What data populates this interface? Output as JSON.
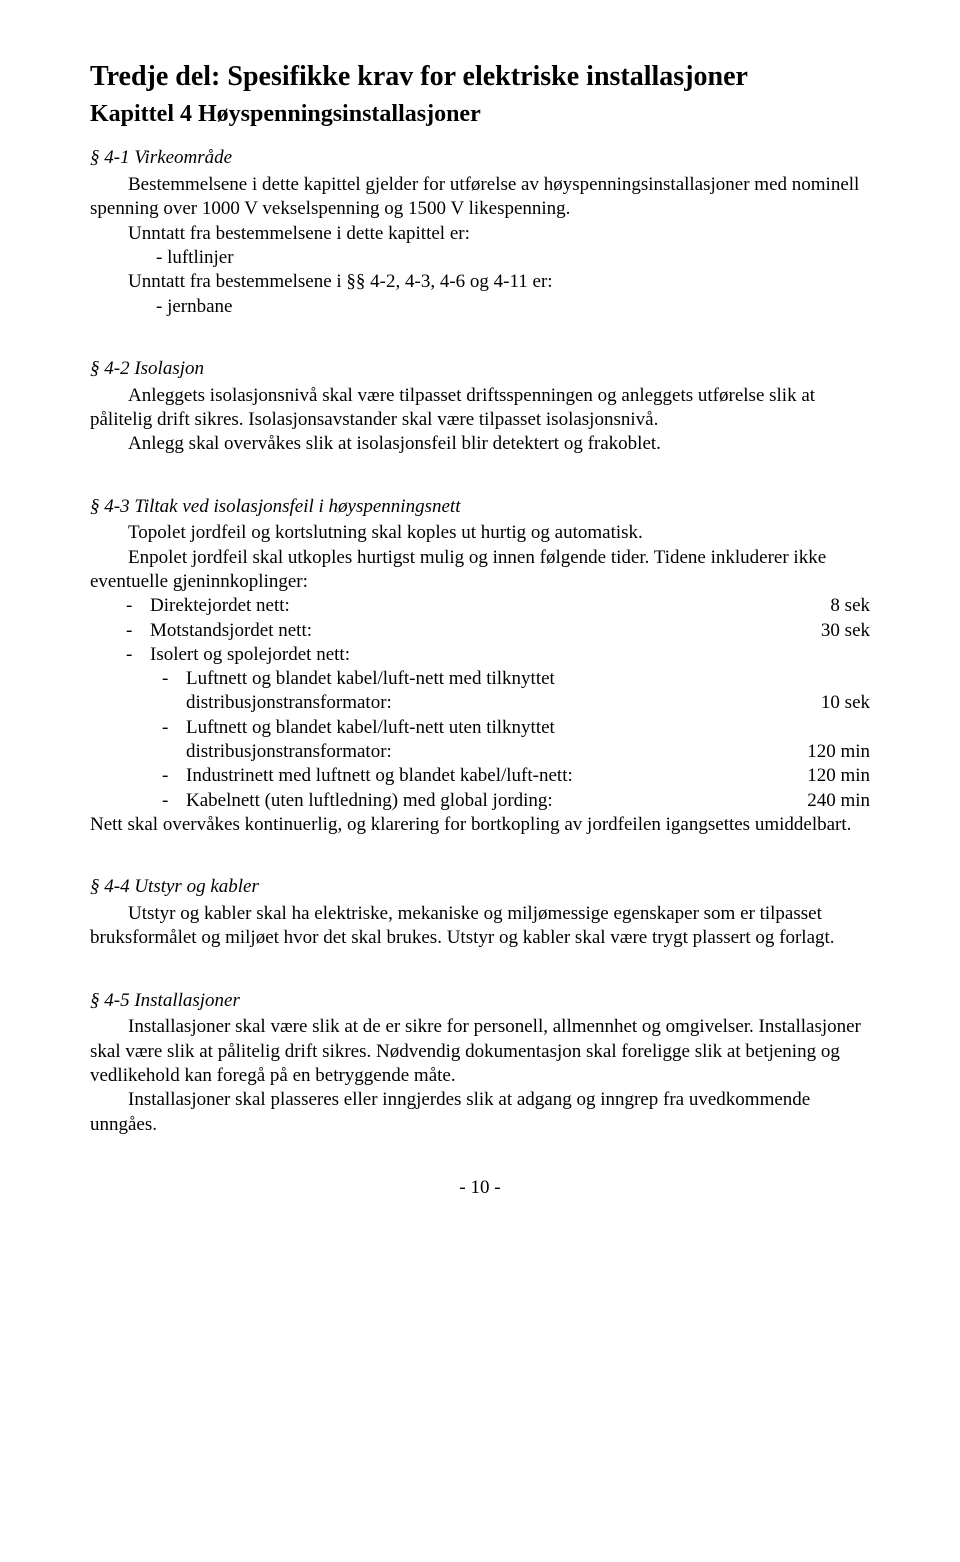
{
  "part_title": "Tredje del: Spesifikke krav for elektriske installasjoner",
  "chapter_title": "Kapittel 4 Høyspenningsinstallasjoner",
  "s41": {
    "heading": "§ 4-1  Virkeområde",
    "p1": "Bestemmelsene i dette kapittel gjelder for utførelse av høyspenningsinstallasjoner med nominell spenning over 1000 V vekselspenning og 1500 V likespenning.",
    "p2": "Unntatt fra bestemmelsene i dette kapittel er:",
    "li1": "-    luftlinjer",
    "p3": "Unntatt fra bestemmelsene i §§ 4-2, 4-3, 4-6 og 4-11 er:",
    "li2": "-    jernbane"
  },
  "s42": {
    "heading": "§ 4-2  Isolasjon",
    "p1": "Anleggets isolasjonsnivå skal være tilpasset driftsspenningen og anleggets utførelse slik at pålitelig drift sikres. Isolasjonsavstander skal være tilpasset isolasjonsnivå.",
    "p2": "Anlegg skal overvåkes slik at isolasjonsfeil blir detektert og frakoblet."
  },
  "s43": {
    "heading": "§ 4-3   Tiltak ved isolasjonsfeil i høyspenningsnett",
    "p1": "Topolet jordfeil og kortslutning skal koples ut hurtig og automatisk.",
    "p2": "Enpolet jordfeil skal utkoples hurtigst mulig og innen følgende tider. Tidene inkluderer ikke eventuelle gjeninnkoplinger:",
    "items": [
      {
        "label": "Direktejordet nett:",
        "value": "8  sek"
      },
      {
        "label": "Motstandsjordet nett:",
        "value": "30  sek"
      },
      {
        "label": "Isolert og spolejordet nett:",
        "value": ""
      }
    ],
    "subitems": [
      {
        "line1": "Luftnett og blandet kabel/luft-nett med tilknyttet",
        "line2": "distribusjonstransformator:",
        "value": "10  sek"
      },
      {
        "line1": "Luftnett og blandet kabel/luft-nett uten tilknyttet",
        "line2": "distribusjonstransformator:",
        "value": "120 min"
      },
      {
        "line1": "Industrinett med luftnett og blandet kabel/luft-nett:",
        "line2": "",
        "value": "120 min"
      },
      {
        "line1": "Kabelnett (uten luftledning) med global jording:",
        "line2": "",
        "value": "240  min"
      }
    ],
    "p3": "Nett skal overvåkes kontinuerlig, og klarering for bortkopling av jordfeilen igangsettes umiddelbart."
  },
  "s44": {
    "heading": "§ 4-4  Utstyr og kabler",
    "p1": "Utstyr og kabler skal ha elektriske, mekaniske og miljømessige egenskaper som er tilpasset bruksformålet og miljøet hvor det skal brukes. Utstyr og kabler skal være trygt plassert og forlagt."
  },
  "s45": {
    "heading": "§ 4-5  Installasjoner",
    "p1": "Installasjoner skal være slik at de er sikre for personell, allmennhet og omgivelser. Installasjoner skal være slik at pålitelig drift sikres. Nødvendig dokumentasjon skal foreligge slik at betjening og vedlikehold kan foregå på en betryggende måte.",
    "p2": "Installasjoner skal plasseres eller inngjerdes slik at adgang og inngrep fra uvedkommende unngåes."
  },
  "page_number": "- 10 -"
}
